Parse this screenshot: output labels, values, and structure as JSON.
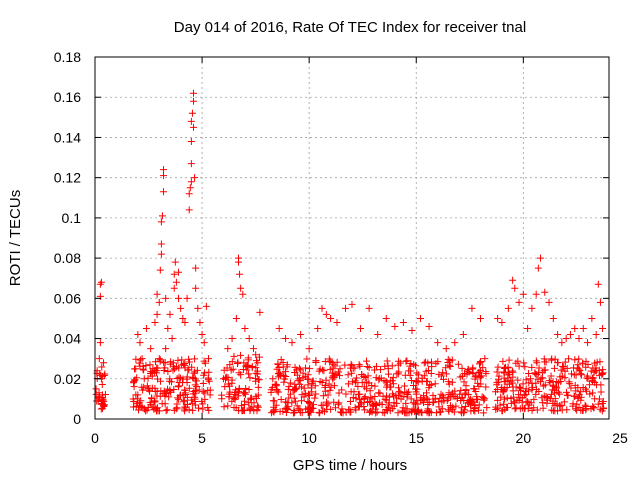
{
  "chart_data": {
    "type": "scatter",
    "title": "Day 014 of 2016, Rate Of TEC Index for receiver tnal",
    "xlabel": "GPS time / hours",
    "ylabel": "ROTI / TECUs",
    "xlim": [
      0,
      24
    ],
    "ylim": [
      0,
      0.18
    ],
    "xticks": [
      "0",
      "5",
      "10",
      "15",
      "20",
      "25"
    ],
    "yticks": [
      "0",
      "0.02",
      "0.04",
      "0.06",
      "0.08",
      "0.1",
      "0.12",
      "0.14",
      "0.16",
      "0.18"
    ],
    "grid": true,
    "marker": "+",
    "color": "#ff0000",
    "series": [
      {
        "values": [
          [
            0.05,
            0.015
          ],
          [
            0.1,
            0.024
          ],
          [
            0.15,
            0.009
          ],
          [
            0.2,
            0.03
          ],
          [
            0.25,
            0.038
          ],
          [
            0.25,
            0.061
          ],
          [
            0.25,
            0.067
          ],
          [
            0.3,
            0.068
          ],
          [
            0.3,
            0.02
          ],
          [
            0.35,
            0.012
          ],
          [
            0.4,
            0.028
          ],
          [
            0.45,
            0.007
          ],
          [
            1.8,
            0.018
          ],
          [
            1.9,
            0.025
          ],
          [
            2.0,
            0.012
          ],
          [
            2.0,
            0.042
          ],
          [
            2.1,
            0.038
          ],
          [
            2.2,
            0.03
          ],
          [
            2.3,
            0.02
          ],
          [
            2.4,
            0.045
          ],
          [
            2.5,
            0.015
          ],
          [
            2.6,
            0.035
          ],
          [
            2.7,
            0.025
          ],
          [
            2.8,
            0.048
          ],
          [
            2.9,
            0.052
          ],
          [
            2.9,
            0.062
          ],
          [
            3.0,
            0.058
          ],
          [
            3.0,
            0.03
          ],
          [
            3.05,
            0.074
          ],
          [
            3.1,
            0.082
          ],
          [
            3.1,
            0.087
          ],
          [
            3.1,
            0.098
          ],
          [
            3.15,
            0.101
          ],
          [
            3.2,
            0.113
          ],
          [
            3.2,
            0.121
          ],
          [
            3.2,
            0.124
          ],
          [
            3.3,
            0.06
          ],
          [
            3.3,
            0.035
          ],
          [
            3.4,
            0.045
          ],
          [
            3.5,
            0.052
          ],
          [
            3.6,
            0.04
          ],
          [
            3.7,
            0.065
          ],
          [
            3.7,
            0.072
          ],
          [
            3.75,
            0.078
          ],
          [
            3.8,
            0.068
          ],
          [
            3.9,
            0.06
          ],
          [
            3.9,
            0.073
          ],
          [
            4.0,
            0.055
          ],
          [
            4.1,
            0.05
          ],
          [
            4.2,
            0.048
          ],
          [
            4.3,
            0.06
          ],
          [
            4.4,
            0.104
          ],
          [
            4.4,
            0.112
          ],
          [
            4.45,
            0.115
          ],
          [
            4.5,
            0.118
          ],
          [
            4.5,
            0.127
          ],
          [
            4.5,
            0.138
          ],
          [
            4.5,
            0.148
          ],
          [
            4.55,
            0.152
          ],
          [
            4.6,
            0.158
          ],
          [
            4.6,
            0.162
          ],
          [
            4.6,
            0.145
          ],
          [
            4.65,
            0.12
          ],
          [
            4.7,
            0.065
          ],
          [
            4.7,
            0.075
          ],
          [
            4.8,
            0.055
          ],
          [
            4.9,
            0.048
          ],
          [
            5.0,
            0.042
          ],
          [
            5.1,
            0.038
          ],
          [
            5.2,
            0.056
          ],
          [
            5.3,
            0.03
          ],
          [
            6.0,
            0.02
          ],
          [
            6.2,
            0.035
          ],
          [
            6.4,
            0.04
          ],
          [
            6.6,
            0.05
          ],
          [
            6.7,
            0.078
          ],
          [
            6.7,
            0.08
          ],
          [
            6.75,
            0.072
          ],
          [
            6.8,
            0.065
          ],
          [
            6.9,
            0.062
          ],
          [
            7.0,
            0.045
          ],
          [
            7.2,
            0.04
          ],
          [
            7.4,
            0.035
          ],
          [
            7.6,
            0.028
          ],
          [
            7.7,
            0.053
          ],
          [
            8.3,
            0.02
          ],
          [
            8.6,
            0.045
          ],
          [
            8.9,
            0.04
          ],
          [
            9.2,
            0.038
          ],
          [
            9.6,
            0.042
          ],
          [
            10.0,
            0.035
          ],
          [
            10.4,
            0.045
          ],
          [
            10.6,
            0.055
          ],
          [
            10.8,
            0.052
          ],
          [
            11.0,
            0.05
          ],
          [
            11.3,
            0.048
          ],
          [
            11.7,
            0.055
          ],
          [
            12.0,
            0.057
          ],
          [
            12.4,
            0.045
          ],
          [
            12.8,
            0.055
          ],
          [
            13.2,
            0.042
          ],
          [
            13.6,
            0.05
          ],
          [
            14.0,
            0.046
          ],
          [
            14.4,
            0.048
          ],
          [
            14.8,
            0.044
          ],
          [
            15.2,
            0.05
          ],
          [
            15.6,
            0.046
          ],
          [
            16.0,
            0.038
          ],
          [
            16.4,
            0.035
          ],
          [
            16.8,
            0.038
          ],
          [
            17.2,
            0.042
          ],
          [
            17.6,
            0.055
          ],
          [
            18.0,
            0.05
          ],
          [
            18.2,
            0.03
          ],
          [
            18.8,
            0.05
          ],
          [
            19.0,
            0.048
          ],
          [
            19.3,
            0.055
          ],
          [
            19.5,
            0.069
          ],
          [
            19.6,
            0.065
          ],
          [
            19.8,
            0.058
          ],
          [
            20.0,
            0.062
          ],
          [
            20.2,
            0.045
          ],
          [
            20.4,
            0.055
          ],
          [
            20.6,
            0.062
          ],
          [
            20.7,
            0.075
          ],
          [
            20.8,
            0.08
          ],
          [
            21.0,
            0.063
          ],
          [
            21.2,
            0.058
          ],
          [
            21.4,
            0.05
          ],
          [
            21.6,
            0.042
          ],
          [
            21.8,
            0.038
          ],
          [
            22.0,
            0.04
          ],
          [
            22.2,
            0.042
          ],
          [
            22.4,
            0.045
          ],
          [
            22.6,
            0.04
          ],
          [
            22.8,
            0.045
          ],
          [
            23.0,
            0.038
          ],
          [
            23.2,
            0.05
          ],
          [
            23.4,
            0.042
          ],
          [
            23.5,
            0.067
          ],
          [
            23.6,
            0.058
          ],
          [
            23.7,
            0.045
          ]
        ]
      }
    ],
    "bands": [
      {
        "x": [
          0.0,
          0.5
        ],
        "y": [
          0.004,
          0.026
        ]
      },
      {
        "x": [
          1.75,
          5.4
        ],
        "y": [
          0.004,
          0.03
        ]
      },
      {
        "x": [
          5.9,
          7.7
        ],
        "y": [
          0.004,
          0.032
        ]
      },
      {
        "x": [
          8.2,
          18.3
        ],
        "y": [
          0.003,
          0.03
        ]
      },
      {
        "x": [
          18.7,
          23.8
        ],
        "y": [
          0.004,
          0.03
        ]
      }
    ]
  }
}
